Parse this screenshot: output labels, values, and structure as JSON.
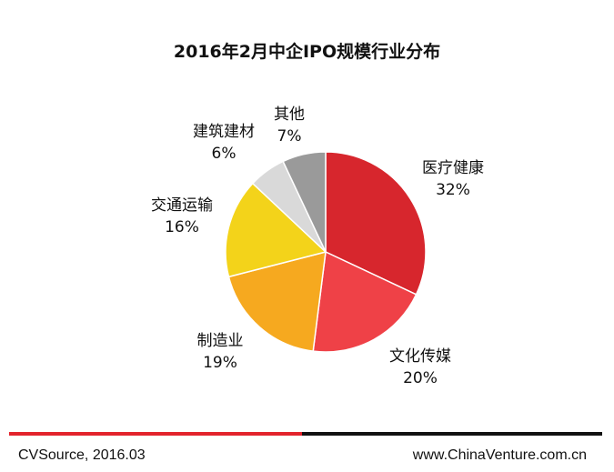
{
  "chart_data": {
    "type": "pie",
    "title": "2016年2月中企IPO规模行业分布",
    "slices": [
      {
        "label": "医疗健康",
        "value": 32,
        "value_label": "32%",
        "color": "#d7262d"
      },
      {
        "label": "文化传媒",
        "value": 20,
        "value_label": "20%",
        "color": "#ef4147"
      },
      {
        "label": "制造业",
        "value": 19,
        "value_label": "19%",
        "color": "#f6a91f"
      },
      {
        "label": "交通运输",
        "value": 16,
        "value_label": "16%",
        "color": "#f3d31a"
      },
      {
        "label": "建筑建材",
        "value": 6,
        "value_label": "6%",
        "color": "#d9d9d9"
      },
      {
        "label": "其他",
        "value": 7,
        "value_label": "7%",
        "color": "#9a9a9a"
      }
    ]
  },
  "footer": {
    "source": "CVSource, 2016.03",
    "url": "www.ChinaVenture.com.cn"
  }
}
